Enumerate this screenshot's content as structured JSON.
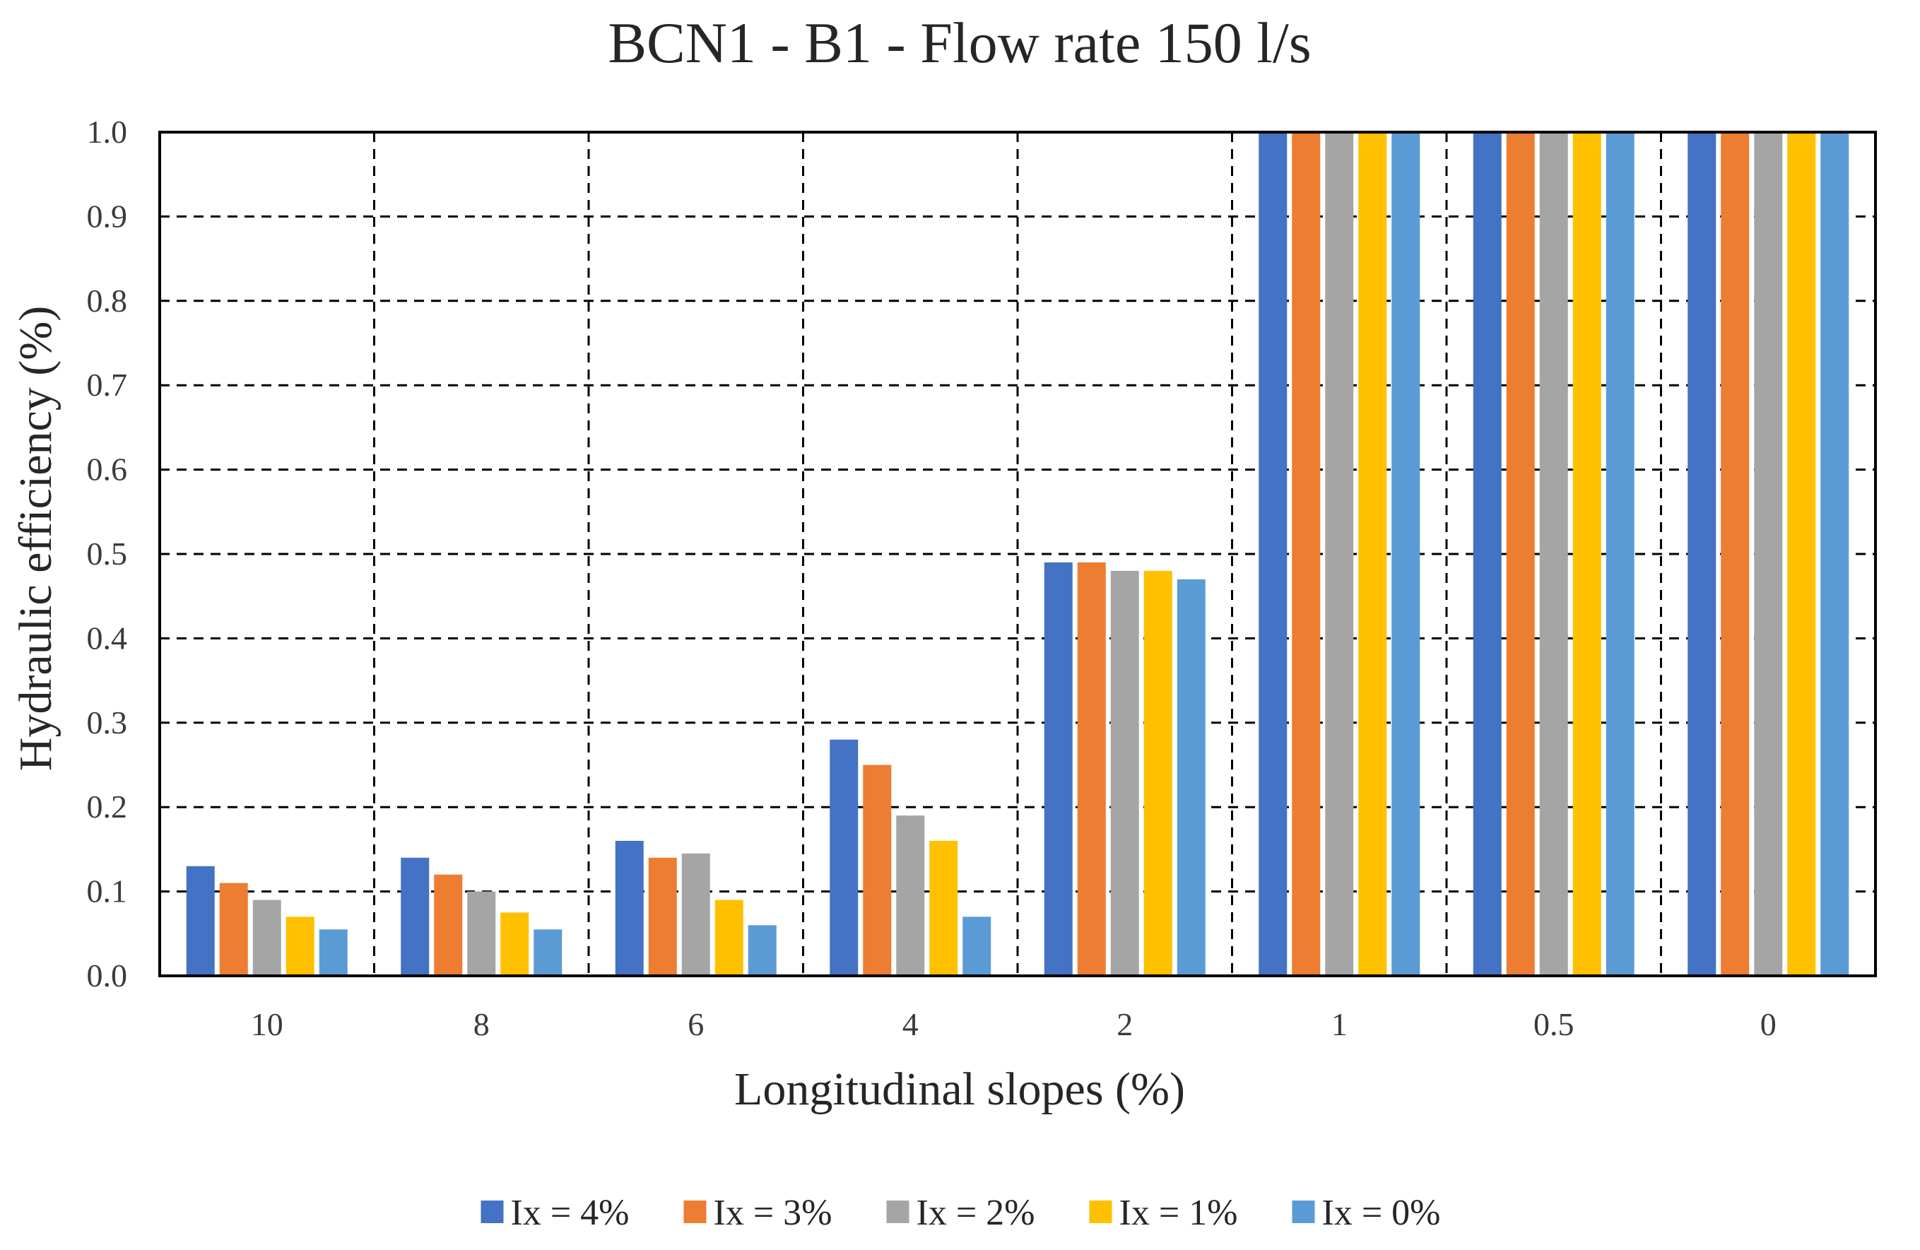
{
  "chart_data": {
    "type": "bar",
    "title": "BCN1 - B1 - Flow rate 150 l/s",
    "xlabel": "Longitudinal slopes (%)",
    "ylabel": "Hydraulic efficiency  (%)",
    "ylim": [
      0,
      1.0
    ],
    "yticks": [
      "0.0",
      "0.1",
      "0.2",
      "0.3",
      "0.4",
      "0.5",
      "0.6",
      "0.7",
      "0.8",
      "0.9",
      "1.0"
    ],
    "grid": true,
    "legend_position": "bottom",
    "categories": [
      "10",
      "8",
      "6",
      "4",
      "2",
      "1",
      "0.5",
      "0"
    ],
    "series": [
      {
        "name": "Ix = 4%",
        "color": "#4472C4",
        "values": [
          0.13,
          0.14,
          0.16,
          0.28,
          0.49,
          1.0,
          1.0,
          1.0
        ]
      },
      {
        "name": "Ix = 3%",
        "color": "#ED7D31",
        "values": [
          0.11,
          0.12,
          0.14,
          0.25,
          0.49,
          1.0,
          1.0,
          1.0
        ]
      },
      {
        "name": "Ix = 2%",
        "color": "#A5A5A5",
        "values": [
          0.09,
          0.1,
          0.145,
          0.19,
          0.48,
          1.0,
          1.0,
          1.0
        ]
      },
      {
        "name": "Ix = 1%",
        "color": "#FFC000",
        "values": [
          0.07,
          0.075,
          0.09,
          0.16,
          0.48,
          1.0,
          1.0,
          1.0
        ]
      },
      {
        "name": "Ix = 0%",
        "color": "#5B9BD5",
        "values": [
          0.055,
          0.055,
          0.06,
          0.07,
          0.47,
          1.0,
          1.0,
          1.0
        ]
      }
    ]
  }
}
